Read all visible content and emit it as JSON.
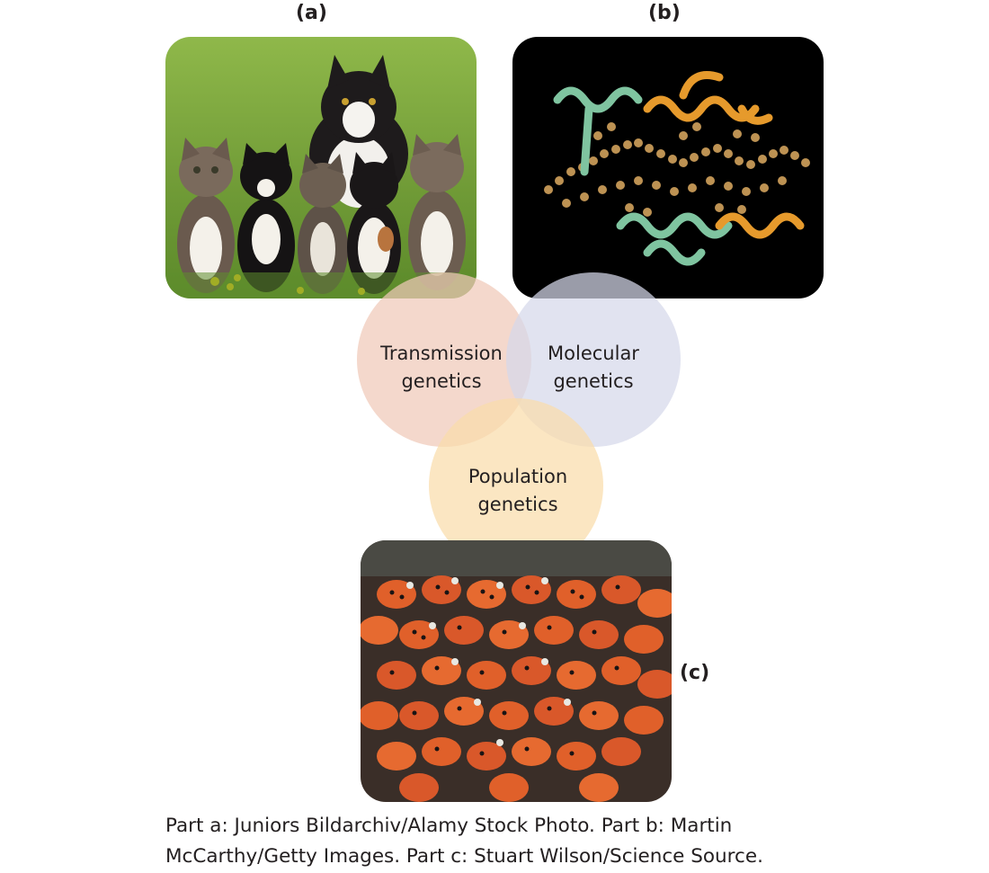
{
  "panels": {
    "a": {
      "label": "(a)"
    },
    "b": {
      "label": "(b)"
    },
    "c": {
      "label": "(c)"
    }
  },
  "circles": {
    "transmission": {
      "line1": "Transmission",
      "line2": "genetics",
      "color": "#f0c9b8"
    },
    "molecular": {
      "line1": "Molecular",
      "line2": "genetics",
      "color": "#d6d8ea"
    },
    "population": {
      "line1": "Population",
      "line2": "genetics",
      "color": "#f9dcaa"
    }
  },
  "credit": {
    "line1": "Part a: Juniors Bildarchiv/Alamy Stock Photo. Part b: Martin",
    "line2": "McCarthy/Getty Images. Part c: Stuart Wilson/Science Source."
  }
}
